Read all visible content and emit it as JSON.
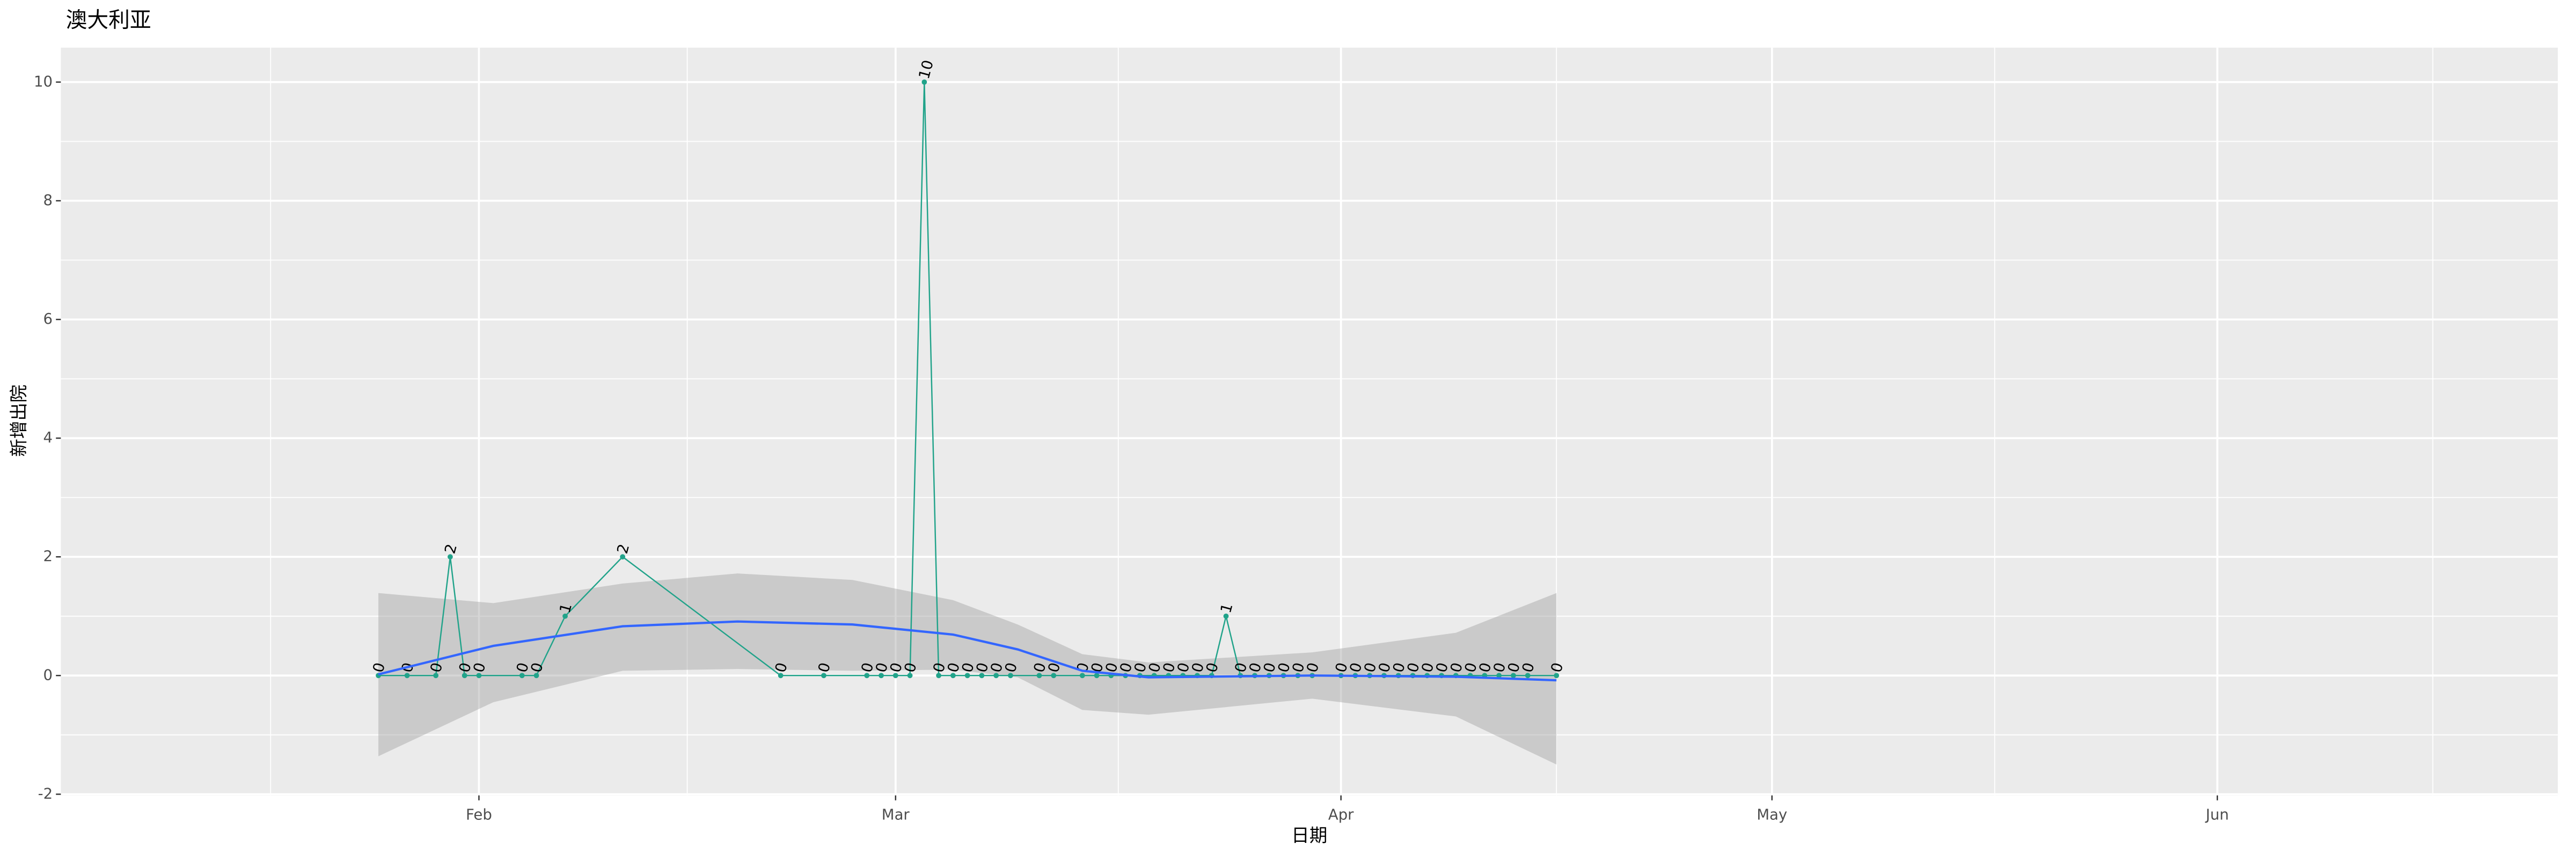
{
  "chart_data": {
    "type": "line",
    "title": "澳大利亚",
    "x_label": "日期",
    "y_label": "新增出院",
    "x": [
      25,
      27,
      29,
      30,
      31,
      32,
      35,
      36,
      38,
      42,
      53,
      56,
      59,
      60,
      61,
      62,
      63,
      64,
      65,
      66,
      67,
      68,
      69,
      71,
      72,
      74,
      75,
      76,
      77,
      78,
      79,
      80,
      81,
      82,
      83,
      84,
      85,
      86,
      87,
      88,
      89,
      90,
      92,
      93,
      94,
      95,
      96,
      97,
      98,
      99,
      100,
      101,
      102,
      103,
      104,
      105,
      107
    ],
    "values": [
      0,
      0,
      0,
      2,
      0,
      0,
      0,
      0,
      1,
      2,
      0,
      0,
      0,
      0,
      0,
      0,
      10,
      0,
      0,
      0,
      0,
      0,
      0,
      0,
      0,
      0,
      0,
      0,
      0,
      0,
      0,
      0,
      0,
      0,
      0,
      1,
      0,
      0,
      0,
      0,
      0,
      0,
      0,
      0,
      0,
      0,
      0,
      0,
      0,
      0,
      0,
      0,
      0,
      0,
      0,
      0,
      0
    ],
    "color": "#21A38A",
    "data_labels": true,
    "smooth": {
      "x": [
        25,
        33,
        42,
        50,
        58,
        65,
        69.5,
        74,
        78.6,
        90,
        100,
        107
      ],
      "values": [
        0.02,
        0.5,
        0.83,
        0.91,
        0.86,
        0.69,
        0.44,
        0.08,
        -0.03,
        0,
        -0.02,
        -0.08
      ],
      "lower": [
        -1.36,
        -0.45,
        0.08,
        0.11,
        0.08,
        0.1,
        -0.03,
        -0.58,
        -0.66,
        -0.39,
        -0.69,
        -1.5
      ],
      "upper": [
        1.39,
        1.22,
        1.55,
        1.72,
        1.61,
        1.27,
        0.86,
        0.36,
        0.22,
        0.39,
        0.72,
        1.39
      ],
      "color": "#3366FF",
      "band_color": "#999999"
    },
    "xlim": [
      2.9,
      176.7
    ],
    "xticks": [
      {
        "value": 32,
        "label": "Feb"
      },
      {
        "value": 61,
        "label": "Mar"
      },
      {
        "value": 92,
        "label": "Apr"
      },
      {
        "value": 122,
        "label": "May"
      },
      {
        "value": 153,
        "label": "Jun"
      }
    ],
    "x_minor_ticks": [
      17.5,
      46.5,
      76.5,
      107,
      137.5,
      168
    ],
    "ylim": [
      -2.02,
      10.58
    ],
    "yticks": [
      -2,
      0,
      2,
      4,
      6,
      8,
      10
    ],
    "y_minor_ticks": [
      -1,
      1,
      3,
      5,
      7,
      9
    ],
    "grid": true
  }
}
